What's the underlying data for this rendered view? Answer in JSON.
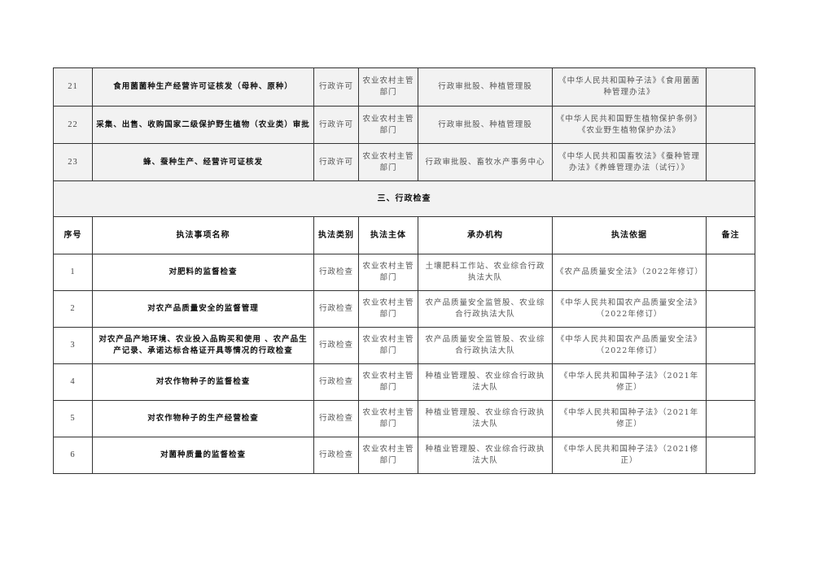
{
  "permit_rows": [
    {
      "no": "21",
      "name": "食用菌菌种生产经营许可证核发（母种、原种）",
      "type": "行政许可",
      "subject": "农业农村主管部门",
      "agency": "行政审批股、种植管理股",
      "basis": "《中华人民共和国种子法》《食用菌菌种管理办法》",
      "note": ""
    },
    {
      "no": "22",
      "name": "采集、出售、收购国家二级保护野生植物（农业类）审批",
      "type": "行政许可",
      "subject": "农业农村主管部门",
      "agency": "行政审批股、种植管理股",
      "basis": "《中华人民共和国野生植物保护条例》《农业野生植物保护办法》",
      "note": ""
    },
    {
      "no": "23",
      "name": "蜂、蚕种生产、经营许可证核发",
      "type": "行政许可",
      "subject": "农业农村主管部门",
      "agency": "行政审批股、畜牧水产事务中心",
      "basis": "《中华人民共和国畜牧法》《蚕种管理办法》《养蜂管理办法（试行）》",
      "note": ""
    }
  ],
  "section_title": "三、行政检查",
  "headers": {
    "no": "序号",
    "name": "执法事项名称",
    "type": "执法类别",
    "subject": "执法主体",
    "agency": "承办机构",
    "basis": "执法依据",
    "note": "备注"
  },
  "inspection_rows": [
    {
      "no": "1",
      "name": "对肥料的监督检查",
      "type": "行政检查",
      "subject": "农业农村主管部门",
      "agency": "土壤肥料工作站、农业综合行政执法大队",
      "basis": "《农产品质量安全法》（2022年修订）",
      "note": ""
    },
    {
      "no": "2",
      "name": "对农产品质量安全的监督管理",
      "type": "行政检查",
      "subject": "农业农村主管部门",
      "agency": "农产品质量安全监管股、农业综合行政执法大队",
      "basis": "《中华人民共和国农产品质量安全法》（2022年修订）",
      "note": ""
    },
    {
      "no": "3",
      "name": "对农产品产地环境、农业投入品购买和使用 、农产品生产记录、承诺达标合格证开具等情况的行政检查",
      "type": "行政检查",
      "subject": "农业农村主管部门",
      "agency": "农产品质量安全监管股、农业综合行政执法大队",
      "basis": "《中华人民共和国农产品质量安全法》（2022年修订）",
      "note": ""
    },
    {
      "no": "4",
      "name": "对农作物种子的监督检查",
      "type": "行政检查",
      "subject": "农业农村主管部门",
      "agency": "种植业管理股、农业综合行政执法大队",
      "basis": "《中华人民共和国种子法》（2021年修正）",
      "note": ""
    },
    {
      "no": "5",
      "name": "对农作物种子的生产经营检查",
      "type": "行政检查",
      "subject": "农业农村主管部门",
      "agency": "种植业管理股、农业综合行政执法大队",
      "basis": "《中华人民共和国种子法》（2021年修正）",
      "note": ""
    },
    {
      "no": "6",
      "name": "对菌种质量的监督检查",
      "type": "行政检查",
      "subject": "农业农村主管部门",
      "agency": "种植业管理股、农业综合行政执法大队",
      "basis": "《中华人民共和国种子法》（2021修正）",
      "note": ""
    }
  ]
}
